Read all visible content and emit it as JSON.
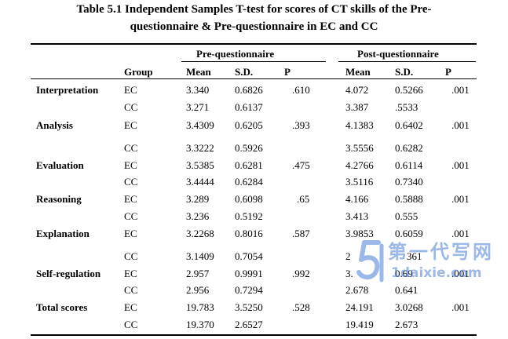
{
  "caption": {
    "line1": "Table 5.1 Independent Samples T-test for scores of CT skills of the Pre-",
    "line2": "questionnaire & Pre-questionnaire in EC and CC"
  },
  "header": {
    "pre_group": "Pre-questionnaire",
    "post_group": "Post-questionnaire",
    "group": "Group",
    "pre_mean": "Mean",
    "pre_sd": "S.D.",
    "pre_p": "P",
    "post_mean": "Mean",
    "post_sd": "S.D.",
    "post_p": "P"
  },
  "rows": [
    {
      "label": "Interpretation",
      "group": "EC",
      "pre_mean": "3.340",
      "pre_sd": "0.6826",
      "pre_p": ".610",
      "post_mean": "4.072",
      "post_sd": "0.5266",
      "post_p": ".001"
    },
    {
      "label": "",
      "group": "CC",
      "pre_mean": "3.271",
      "pre_sd": "0.6137",
      "pre_p": "",
      "post_mean": "3.387",
      "post_sd": ".5533",
      "post_p": ""
    },
    {
      "label": "Analysis",
      "group": "EC",
      "pre_mean": "3.4309",
      "pre_sd": "0.6205",
      "pre_p": ".393",
      "post_mean": "4.1383",
      "post_sd": "0.6402",
      "post_p": ".001"
    },
    {
      "label": "",
      "group": "CC",
      "pre_mean": "3.3222",
      "pre_sd": "0.5926",
      "pre_p": "",
      "post_mean": "3.5556",
      "post_sd": "0.6282",
      "post_p": ""
    },
    {
      "label": "Evaluation",
      "group": "EC",
      "pre_mean": "3.5385",
      "pre_sd": "0.6281",
      "pre_p": ".475",
      "post_mean": "4.2766",
      "post_sd": "0.6114",
      "post_p": ".001"
    },
    {
      "label": "",
      "group": "CC",
      "pre_mean": "3.4444",
      "pre_sd": "0.6284",
      "pre_p": "",
      "post_mean": "3.5116",
      "post_sd": "0.7340",
      "post_p": ""
    },
    {
      "label": "Reasoning",
      "group": "EC",
      "pre_mean": "3.289",
      "pre_sd": "0.6098",
      "pre_p": ".65",
      "post_mean": "4.166",
      "post_sd": "0.5888",
      "post_p": ".001"
    },
    {
      "label": "",
      "group": "CC",
      "pre_mean": "3.236",
      "pre_sd": "0.5192",
      "pre_p": "",
      "post_mean": "3.413",
      "post_sd": "0.555",
      "post_p": ""
    },
    {
      "label": "Explanation",
      "group": "EC",
      "pre_mean": "3.2268",
      "pre_sd": "0.8016",
      "pre_p": ".587",
      "post_mean": "3.9853",
      "post_sd": "0.6059",
      "post_p": ".001"
    },
    {
      "label": "",
      "group": "CC",
      "pre_mean": "3.1409",
      "pre_sd": "0.7054",
      "pre_p": "",
      "post_mean": "2",
      "post_sd": "361",
      "post_p": ""
    },
    {
      "label": "Self-regulation",
      "group": "EC",
      "pre_mean": "2.957",
      "pre_sd": "0.9991",
      "pre_p": ".992",
      "post_mean": "3.",
      "post_sd": "0.69",
      "post_p": ".001"
    },
    {
      "label": "",
      "group": "CC",
      "pre_mean": "2.956",
      "pre_sd": "0.7294",
      "pre_p": "",
      "post_mean": "2.678",
      "post_sd": "0.641",
      "post_p": ""
    },
    {
      "label": "Total scores",
      "group": "EC",
      "pre_mean": "19.783",
      "pre_sd": "3.5250",
      "pre_p": ".528",
      "post_mean": "24.191",
      "post_sd": "3.0268",
      "post_p": ".001"
    },
    {
      "label": "",
      "group": "CC",
      "pre_mean": "19.370",
      "pre_sd": "2.6527",
      "pre_p": "",
      "post_mean": "19.419",
      "post_sd": "2.673",
      "post_p": ""
    }
  ],
  "watermark": {
    "brand_cn": "第一代写网",
    "url": "1daixie.com",
    "logo_color": "#4a7fd6"
  }
}
